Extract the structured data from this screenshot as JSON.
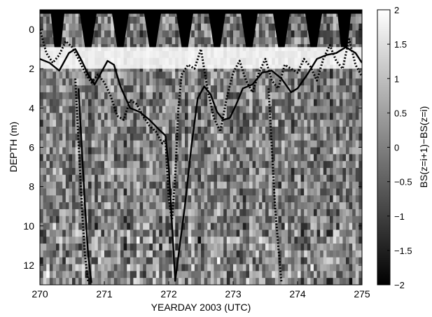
{
  "chart_data": {
    "type": "heatmap",
    "title": "",
    "xlabel": "YEARDAY 2003 (UTC)",
    "ylabel": "DEPTH (m)",
    "colorbar_label": "BS(z=i+1)−BS(z=i)",
    "colormap": "grayscale",
    "x_ticks": [
      270,
      271,
      272,
      273,
      274,
      275
    ],
    "y_ticks": [
      0,
      2,
      4,
      6,
      8,
      10,
      12
    ],
    "colorbar_ticks": [
      "2",
      "1.5",
      "1",
      "0.5",
      "0",
      "−0.5",
      "−1",
      "−1.5",
      "−2"
    ],
    "xlim": [
      270,
      275
    ],
    "ylim": [
      13,
      -1
    ],
    "clim": [
      -2,
      2
    ],
    "surface_waves": {
      "crest_depth": -0.8,
      "trough_depth": 0.9,
      "crest_x": [
        270.05,
        270.5,
        271.0,
        271.5,
        272.0,
        272.5,
        273.0,
        273.5,
        274.0,
        274.5,
        274.95
      ]
    },
    "series": [
      {
        "style": "solid",
        "x": [
          270.0,
          270.15,
          270.3,
          270.45,
          270.55,
          270.65,
          270.75,
          270.85,
          270.95,
          271.05,
          271.15,
          271.25,
          271.4,
          271.55,
          271.7,
          271.85,
          271.95
        ],
        "y": [
          1.5,
          1.7,
          2.1,
          1.2,
          1.0,
          1.6,
          2.3,
          2.8,
          2.2,
          1.6,
          1.8,
          2.9,
          4.0,
          4.2,
          4.6,
          5.1,
          5.4
        ]
      },
      {
        "style": "solid",
        "x": [
          271.95,
          272.0,
          272.1,
          272.25,
          272.35,
          272.45,
          272.55,
          272.65,
          272.75,
          272.85,
          272.95,
          273.05,
          273.15,
          273.3,
          273.45,
          273.6,
          273.75,
          273.9,
          274.0,
          274.15,
          274.3,
          274.45,
          274.6,
          274.75,
          274.9,
          275.0
        ],
        "y": [
          5.4,
          7.0,
          12.8,
          9.0,
          6.0,
          3.5,
          2.9,
          3.3,
          4.2,
          4.6,
          4.5,
          3.8,
          3.0,
          2.8,
          2.2,
          2.1,
          2.5,
          3.2,
          3.0,
          2.3,
          1.5,
          1.3,
          1.2,
          0.9,
          1.2,
          1.7
        ]
      },
      {
        "style": "solid",
        "x": [
          270.6,
          270.65,
          270.7,
          270.75,
          270.8
        ],
        "y": [
          3.0,
          6.0,
          9.0,
          11.5,
          12.9
        ]
      },
      {
        "style": "dotted",
        "x": [
          270.0,
          270.1,
          270.2,
          270.3,
          270.4,
          270.5,
          270.6,
          270.7,
          270.8,
          270.9,
          271.0,
          271.1,
          271.2,
          271.3,
          271.4,
          271.5,
          271.6,
          271.7,
          271.8,
          271.9,
          271.95,
          272.0,
          272.05,
          272.1,
          272.15,
          272.2,
          272.3,
          272.4,
          272.5,
          272.55,
          272.6,
          272.7,
          272.8,
          272.9,
          273.0,
          273.1,
          273.2,
          273.3,
          273.4,
          273.5,
          273.6,
          273.7,
          273.8,
          273.9,
          274.0,
          274.1,
          274.2,
          274.3,
          274.4,
          274.5,
          274.6,
          274.7,
          274.8,
          274.9,
          275.0
        ],
        "y": [
          0.0,
          1.2,
          1.7,
          1.3,
          0.6,
          0.9,
          1.5,
          2.2,
          2.7,
          2.3,
          2.7,
          3.4,
          4.4,
          4.6,
          3.6,
          3.8,
          4.4,
          4.9,
          5.2,
          5.8,
          5.6,
          8.6,
          9.7,
          7.5,
          4.0,
          2.3,
          1.8,
          2.0,
          1.0,
          2.0,
          3.0,
          4.5,
          5.2,
          3.5,
          2.2,
          1.6,
          2.6,
          3.2,
          2.2,
          1.5,
          2.6,
          3.0,
          1.8,
          2.0,
          2.2,
          1.5,
          1.9,
          2.6,
          1.5,
          0.8,
          1.6,
          2.0,
          0.5,
          1.8,
          2.4
        ]
      },
      {
        "style": "dotted",
        "x": [
          270.55,
          270.58,
          270.62,
          270.66,
          270.7,
          270.75
        ],
        "y": [
          2.5,
          4.5,
          7.0,
          9.5,
          11.5,
          12.9
        ]
      },
      {
        "style": "dotted",
        "x": [
          273.55,
          273.6,
          273.65,
          273.7,
          273.75
        ],
        "y": [
          3.0,
          6.0,
          9.0,
          11.0,
          12.9
        ]
      }
    ]
  }
}
